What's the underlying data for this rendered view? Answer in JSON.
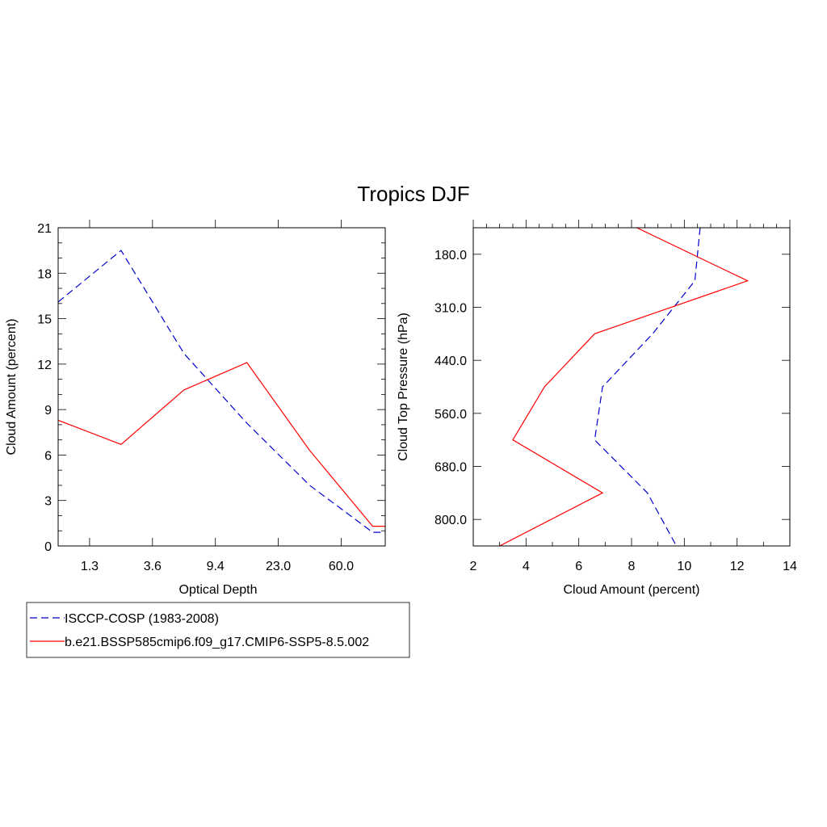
{
  "title": "Tropics DJF",
  "colors": {
    "obs": "#0000cc",
    "model": "#ff0000",
    "frame": "#000000"
  },
  "legend": {
    "entries": [
      {
        "label": "ISCCP-COSP (1983-2008)",
        "series": "obs",
        "dash": true
      },
      {
        "label": "b.e21.BSSP585cmip6.f09_g17.CMIP6-SSP5-8.5.002",
        "series": "model",
        "dash": false
      }
    ]
  },
  "chart_data": [
    {
      "type": "line",
      "xlabel": "Optical Depth",
      "ylabel": "Cloud Amount (percent)",
      "x_positions": [
        0,
        1,
        2,
        3,
        4,
        5,
        6
      ],
      "xlim": [
        0,
        5.2
      ],
      "x_ticks": [
        {
          "pos": 0.5,
          "label": "1.3"
        },
        {
          "pos": 1.5,
          "label": "3.6"
        },
        {
          "pos": 2.5,
          "label": "9.4"
        },
        {
          "pos": 3.5,
          "label": "23.0"
        },
        {
          "pos": 4.5,
          "label": "60.0"
        }
      ],
      "ylim": [
        0,
        21
      ],
      "y_ticks": [
        "0",
        "3",
        "6",
        "9",
        "12",
        "15",
        "18",
        "21"
      ],
      "y_minor_step": 1,
      "series": [
        {
          "name": "ISCCP-COSP (1983-2008)",
          "key": "obs",
          "x": [
            0,
            1,
            2,
            3,
            4,
            5,
            6
          ],
          "values": [
            16.1,
            19.5,
            12.7,
            8.1,
            4.0,
            0.9,
            0.9
          ]
        },
        {
          "name": "b.e21.BSSP585cmip6.f09_g17.CMIP6-SSP5-8.5.002",
          "key": "model",
          "x": [
            0,
            1,
            2,
            3,
            4,
            5,
            6
          ],
          "values": [
            8.3,
            6.7,
            10.3,
            12.1,
            6.3,
            1.3,
            1.3
          ]
        }
      ]
    },
    {
      "type": "line",
      "xlabel": "Cloud Amount (percent)",
      "ylabel": "Cloud Top Pressure (hPa)",
      "xlim": [
        2,
        14
      ],
      "x_ticks": [
        "2",
        "4",
        "6",
        "8",
        "10",
        "12",
        "14"
      ],
      "x_minor_step": 1,
      "ylim": [
        60,
        900
      ],
      "y_inverted": true,
      "y_ticks": [
        "180.0",
        "310.0",
        "440.0",
        "560.0",
        "680.0",
        "800.0"
      ],
      "y_tick_values": [
        130,
        270,
        410,
        550,
        690,
        830
      ],
      "series": [
        {
          "name": "ISCCP-COSP (1983-2008)",
          "key": "obs",
          "pressure": [
            60,
            200,
            340,
            480,
            620,
            760,
            900
          ],
          "values": [
            10.6,
            10.4,
            8.8,
            6.9,
            6.6,
            8.6,
            9.7
          ]
        },
        {
          "name": "b.e21.BSSP585cmip6.f09_g17.CMIP6-SSP5-8.5.002",
          "key": "model",
          "pressure": [
            60,
            200,
            340,
            480,
            620,
            760,
            900
          ],
          "values": [
            8.2,
            12.4,
            6.6,
            4.7,
            3.5,
            6.9,
            3.0
          ]
        }
      ]
    }
  ]
}
